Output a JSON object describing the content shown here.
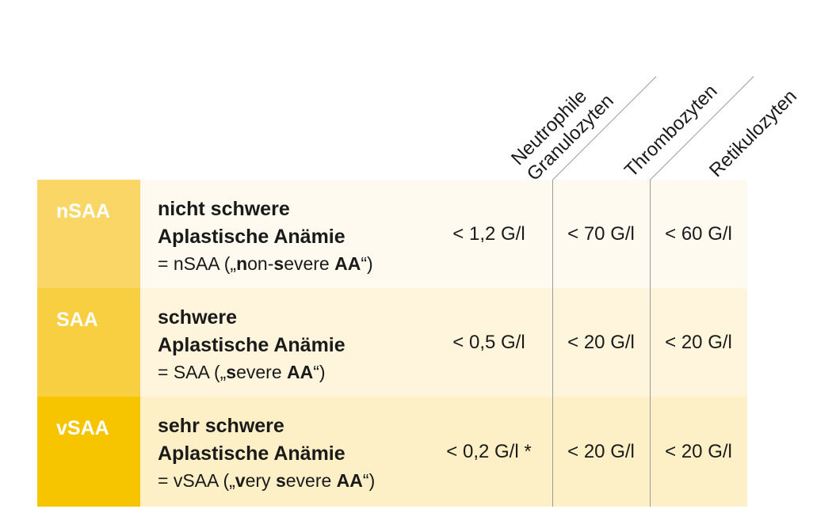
{
  "columns": [
    {
      "lines": [
        "Neutrophile",
        "Granulozyten"
      ]
    },
    {
      "lines": [
        "Thrombozyten"
      ]
    },
    {
      "lines": [
        "Retikulozyten"
      ]
    }
  ],
  "rows": [
    {
      "tag": "nSAA",
      "title_1": "nicht schwere",
      "title_2": "Aplastische Anämie",
      "abbr_pre": "= nSAA („",
      "abbr_parts": [
        {
          "bold": "n",
          "text": "on-"
        },
        {
          "bold": "s",
          "text": "evere "
        },
        {
          "bold": "AA",
          "text": ""
        }
      ],
      "abbr_post": "“)",
      "values": [
        "< 1,2 G/l",
        "< 70 G/l",
        "< 60 G/l"
      ]
    },
    {
      "tag": "SAA",
      "title_1": "schwere",
      "title_2": "Aplastische Anämie",
      "abbr_pre": "= SAA („",
      "abbr_parts": [
        {
          "bold": "s",
          "text": "evere "
        },
        {
          "bold": "AA",
          "text": ""
        }
      ],
      "abbr_post": "“)",
      "values": [
        "< 0,5 G/l",
        "< 20 G/l",
        "< 20 G/l"
      ]
    },
    {
      "tag": "vSAA",
      "title_1": "sehr schwere",
      "title_2": "Aplastische Anämie",
      "abbr_pre": "= vSAA („",
      "abbr_parts": [
        {
          "bold": "v",
          "text": "ery "
        },
        {
          "bold": "s",
          "text": "evere "
        },
        {
          "bold": "AA",
          "text": ""
        }
      ],
      "abbr_post": "“)",
      "values": [
        "< 0,2 G/l *",
        "< 20 G/l",
        "< 20 G/l"
      ]
    }
  ],
  "colors": {
    "tag_nsaa": "#fad667",
    "tag_saa": "#f8cf41",
    "tag_vsaa": "#f6c500",
    "body_nsaa": "#fefaf0",
    "body_saa": "#fef5dc",
    "body_vsaa": "#fdefc6",
    "divider": "#9a9a9a"
  }
}
